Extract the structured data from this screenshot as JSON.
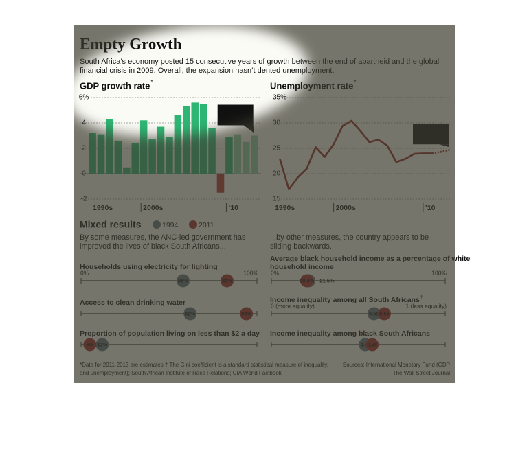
{
  "header": {
    "title": "Empty Growth",
    "subtitle": [
      "South Africa’s economy posted 15 consecutive years of growth between the end of apartheid and the global",
      "financial crisis in 2009. Overall, the expansion hasn’t dented unemployment."
    ]
  },
  "chart_data": [
    {
      "type": "bar",
      "title": "GDP growth rate",
      "title_note": "*",
      "x": [
        1994,
        1995,
        1996,
        1997,
        1998,
        1999,
        2000,
        2001,
        2002,
        2003,
        2004,
        2005,
        2006,
        2007,
        2008,
        2009,
        2010,
        2011,
        2012,
        2013
      ],
      "values": [
        3.2,
        3.1,
        4.3,
        2.6,
        0.5,
        2.4,
        4.2,
        2.7,
        3.7,
        2.9,
        4.6,
        5.3,
        5.6,
        5.5,
        3.6,
        -1.5,
        2.9,
        3.1,
        2.5,
        3.0
      ],
      "xlim": [
        1992.5,
        2013.75
      ],
      "x_start_label": "1990s",
      "xticks": [
        {
          "value": 2000,
          "label": "2000s"
        },
        {
          "value": 2010,
          "label": "’10"
        }
      ],
      "ylim": [
        -2,
        6
      ],
      "yticks": [
        -2,
        0,
        2,
        4,
        {
          "value": 6,
          "label": "6%"
        }
      ],
      "grid": true,
      "color": "#2db673",
      "negative_color": "#b8322c",
      "estimate_color": "#8ccfa6",
      "estimate_from": 2011,
      "annotation": {
        "lines": [
          "2013 est.",
          "3.0%"
        ]
      }
    },
    {
      "type": "line",
      "title": "Unemployment rate",
      "title_note": "*",
      "x": [
        1994,
        1995,
        1996,
        1997,
        1998,
        1999,
        2000,
        2001,
        2002,
        2003,
        2004,
        2005,
        2006,
        2007,
        2008,
        2009,
        2010,
        2011,
        2012,
        2013
      ],
      "values": [
        22.9,
        16.9,
        19.3,
        21.0,
        25.2,
        23.3,
        25.8,
        29.4,
        30.4,
        28.4,
        26.2,
        26.7,
        25.5,
        22.3,
        22.9,
        23.9,
        24.0,
        24.0,
        24.3,
        24.7
      ],
      "xlim": [
        1993.2,
        2013
      ],
      "x_start_label": "1990s",
      "xticks": [
        {
          "value": 2000,
          "label": "2000s"
        },
        {
          "value": 2010,
          "label": "’10"
        }
      ],
      "ylim": [
        15,
        35
      ],
      "yticks": [
        15,
        20,
        25,
        30,
        {
          "value": 35,
          "label": "35%"
        }
      ],
      "grid": true,
      "color": "#8e1f1f",
      "estimate_from": 2011,
      "annotation": {
        "lines": [
          "2013 est.",
          "24.7%"
        ]
      }
    }
  ],
  "mixed_results": {
    "title": "Mixed results",
    "legend": [
      {
        "name": "1994",
        "color": "#5d7282"
      },
      {
        "name": "2011",
        "color": "#a2262b"
      }
    ],
    "left_intro": [
      "By some measures, the ANC-led government has",
      "improved the lives of black South Africans..."
    ],
    "right_intro": [
      "...by other measures, the country appears to be",
      "sliding backwards."
    ],
    "panels": [
      {
        "type": "dot",
        "column": "left",
        "label": [
          "Households using electricity for lighting"
        ],
        "xlim": [
          0,
          100
        ],
        "xticks": [
          {
            "value": 0,
            "label": "0%"
          },
          {
            "value": 100,
            "label": "100%"
          }
        ],
        "values": [
          58,
          83
        ],
        "value_labels": [
          "58%",
          "83%"
        ]
      },
      {
        "type": "dot",
        "column": "left",
        "label": [
          "Access to clean drinking water"
        ],
        "xlim": [
          0,
          100
        ],
        "values": [
          62,
          94
        ],
        "value_labels": [
          "62%",
          "94%"
        ]
      },
      {
        "type": "dot",
        "column": "left",
        "label": [
          "Proportion of population living on less than $2 a day"
        ],
        "xlim": [
          0,
          100
        ],
        "values": [
          12,
          5
        ],
        "value_labels": [
          "12%",
          "5%"
        ]
      },
      {
        "type": "dot",
        "column": "right",
        "label": [
          "Average black household income as a percentage of white",
          "household income"
        ],
        "xlim": [
          0,
          100
        ],
        "xticks": [
          {
            "value": 0,
            "label": "0%"
          },
          {
            "value": 100,
            "label": "100%"
          }
        ],
        "values": [
          21.5,
          20.4
        ],
        "value_labels": [
          "21.5%",
          "20.4%"
        ]
      },
      {
        "type": "dot",
        "column": "right",
        "label": [
          "Income inequality among all South Africans"
        ],
        "label_note": "†",
        "xlim": [
          0,
          1
        ],
        "xticks": [
          {
            "value": 0,
            "label": "0 (more equality)"
          },
          {
            "value": 1,
            "label": "1 (less equality)"
          }
        ],
        "values": [
          0.59,
          0.65
        ]
      },
      {
        "type": "dot",
        "column": "right",
        "label": [
          "Income inequality among black South Africans"
        ],
        "xlim": [
          0,
          1
        ],
        "values": [
          0.54,
          0.58
        ]
      }
    ]
  },
  "footer": {
    "left": [
      "*Data for 2011-2013 are estimates  † The Gini coefficient is a standard statistical measure of inequality.",
      "and unemployment); South African Institute of Race Relations; CIA World Factbook"
    ],
    "right": [
      "Sources: International Monetary Fund (GDP",
      "The Wall Street Journal"
    ]
  }
}
